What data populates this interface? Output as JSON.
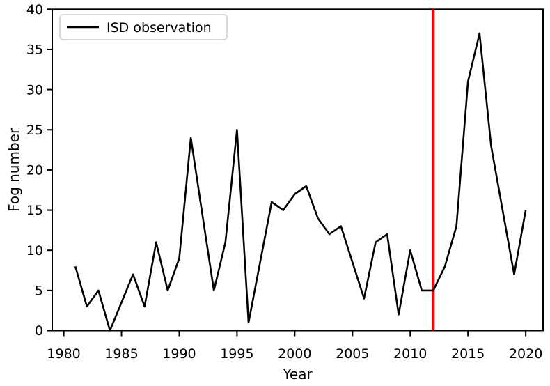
{
  "figure": {
    "background": "#ffffff"
  },
  "legend": {
    "label": "ISD observation",
    "line_color": "#000000",
    "border_color": "#cccccc",
    "position": "upper-left"
  },
  "chart_data": {
    "type": "line",
    "title": "",
    "xlabel": "Year",
    "ylabel": "Fog number",
    "xlim": [
      1979,
      2021.5
    ],
    "ylim": [
      0,
      40
    ],
    "xticks": [
      1980,
      1985,
      1990,
      1995,
      2000,
      2005,
      2010,
      2015,
      2020
    ],
    "yticks": [
      0,
      5,
      10,
      15,
      20,
      25,
      30,
      35,
      40
    ],
    "grid": false,
    "legend_position": "upper-left",
    "series": [
      {
        "name": "ISD observation",
        "color": "#000000",
        "x": [
          1981,
          1982,
          1983,
          1984,
          1985,
          1986,
          1987,
          1988,
          1989,
          1990,
          1991,
          1992,
          1993,
          1994,
          1995,
          1996,
          1997,
          1998,
          1999,
          2000,
          2001,
          2002,
          2003,
          2004,
          2005,
          2006,
          2007,
          2008,
          2009,
          2010,
          2011,
          2012,
          2013,
          2014,
          2015,
          2016,
          2017,
          2018,
          2019,
          2020
        ],
        "y": [
          8,
          3,
          5,
          0,
          3.5,
          7,
          3,
          11,
          5,
          9,
          24,
          14.5,
          5,
          11,
          25,
          1,
          8.5,
          16,
          15,
          17,
          18,
          14,
          12,
          13,
          8.5,
          4,
          11,
          12,
          2,
          10,
          5,
          5,
          8,
          13,
          31,
          37,
          23,
          15,
          7,
          15
        ]
      }
    ],
    "vline": {
      "x": 2012,
      "color": "#ff0000"
    }
  }
}
